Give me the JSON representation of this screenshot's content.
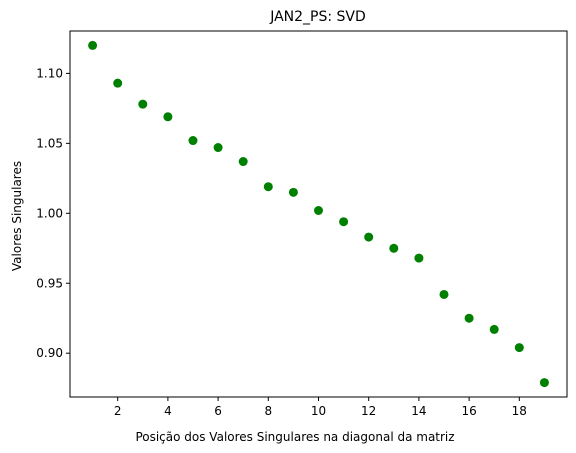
{
  "chart_data": {
    "type": "scatter",
    "title": "JAN2_PS: SVD",
    "xlabel": "Posição dos Valores Singulares na diagonal da matriz",
    "ylabel": "Valores Singulares",
    "x": [
      1,
      2,
      3,
      4,
      5,
      6,
      7,
      8,
      9,
      10,
      11,
      12,
      13,
      14,
      15,
      16,
      17,
      18,
      19
    ],
    "y": [
      1.12,
      1.093,
      1.078,
      1.069,
      1.052,
      1.047,
      1.037,
      1.019,
      1.015,
      1.002,
      0.994,
      0.983,
      0.975,
      0.968,
      0.942,
      0.925,
      0.917,
      0.904,
      0.879
    ],
    "xlim": [
      0.1,
      19.9
    ],
    "ylim": [
      0.8687,
      1.1303
    ],
    "xticks": [
      2,
      4,
      6,
      8,
      10,
      12,
      14,
      16,
      18
    ],
    "yticks": [
      0.9,
      0.95,
      1.0,
      1.05,
      1.1
    ],
    "ytick_labels": [
      "0.90",
      "0.95",
      "1.00",
      "1.05",
      "1.10"
    ],
    "grid": false,
    "marker_color": "#008000"
  }
}
